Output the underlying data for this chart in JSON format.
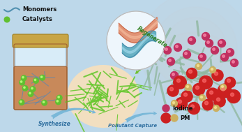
{
  "bg_color": "#bdd8ea",
  "text_monomers": "Monomers",
  "text_catalysts": "Catalysts",
  "text_synthesize": "Synthesize",
  "text_pollutant": "Pollutant Capture",
  "text_regenerate": "Regenerate",
  "text_iodine": "Iodine",
  "text_pm": "PM",
  "jar_body_color": "#c8895a",
  "jar_cap_color": "#c8a545",
  "jar_glass_color": "#d8ecf8",
  "jar_glass_edge": "#b0cce0",
  "network_color": "#6ac832",
  "network_bg_color": "#f2dfc0",
  "fiber_color1": "#e08868",
  "fiber_color2": "#5aaabe",
  "mesh_color": "#90b8a0",
  "smoke_color": "#c8d0d8",
  "iodine_dot_color": "#c03060",
  "pm_dot_color": "#cc2020",
  "pm_small_dot_color": "#ccb060",
  "arrow_synthesize_color": "#7ab8d8",
  "arrow_pollutant_color": "#7ab8d8",
  "arrow_regenerate_color": "#70c030",
  "dashed_line_color": "#e05030",
  "wavy_color": "#5090b0",
  "catalyst_color": "#60c030"
}
